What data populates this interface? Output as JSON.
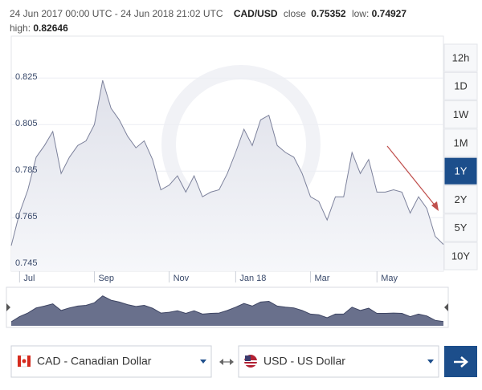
{
  "header": {
    "range": "24 Jun 2017 00:00 UTC - 24 Jun 2018 21:02 UTC",
    "pair": "CAD/USD",
    "close_label": "close",
    "close": 0.75352,
    "low_label": "low:",
    "low": 0.74927,
    "high_label": "high:",
    "high": 0.82646
  },
  "chart_data": {
    "type": "area",
    "color": "#7d829c",
    "fill": "#e4e6ee",
    "categories": [
      null,
      "Jul",
      null,
      null,
      null,
      null,
      null,
      null,
      null,
      null,
      "Sep",
      null,
      null,
      null,
      null,
      null,
      null,
      null,
      null,
      "Nov",
      null,
      null,
      null,
      null,
      null,
      null,
      null,
      "Jan 18",
      null,
      null,
      null,
      null,
      null,
      null,
      null,
      null,
      "Mar",
      null,
      null,
      null,
      null,
      null,
      null,
      null,
      "May",
      null,
      null,
      null,
      null,
      null,
      null,
      null,
      null
    ],
    "values": [
      0.753,
      0.767,
      0.777,
      0.791,
      0.796,
      0.802,
      0.784,
      0.791,
      0.796,
      0.798,
      0.805,
      0.824,
      0.812,
      0.807,
      0.8,
      0.795,
      0.798,
      0.79,
      0.777,
      0.779,
      0.783,
      0.776,
      0.783,
      0.774,
      0.776,
      0.777,
      0.784,
      0.793,
      0.803,
      0.796,
      0.807,
      0.809,
      0.796,
      0.793,
      0.791,
      0.784,
      0.774,
      0.772,
      0.764,
      0.774,
      0.774,
      0.793,
      0.784,
      0.79,
      0.776,
      0.776,
      0.777,
      0.776,
      0.767,
      0.774,
      0.769,
      0.757,
      0.7535
    ],
    "ylim": [
      0.742,
      0.843
    ],
    "yticks": [
      0.745,
      0.765,
      0.785,
      0.805,
      0.825
    ],
    "grid": true
  },
  "range_buttons": [
    {
      "label": "12h"
    },
    {
      "label": "1D"
    },
    {
      "label": "1W"
    },
    {
      "label": "1M"
    },
    {
      "label": "1Y",
      "active": true
    },
    {
      "label": "2Y"
    },
    {
      "label": "5Y"
    },
    {
      "label": "10Y"
    }
  ],
  "converter": {
    "from": "CAD - Canadian Dollar",
    "to": "USD - US Dollar"
  }
}
